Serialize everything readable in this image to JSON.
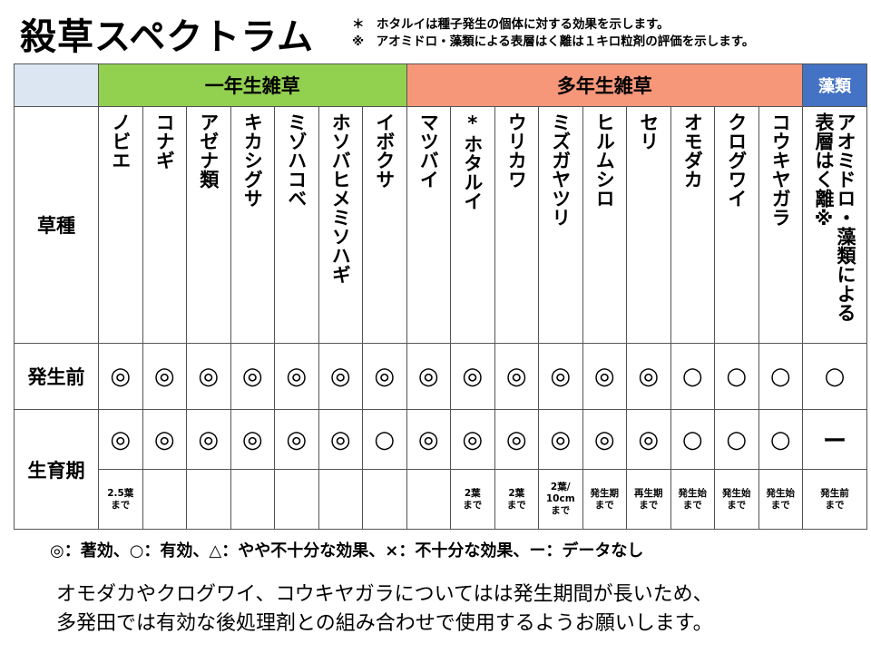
{
  "title": "殺草スペクトラム",
  "notes": [
    "＊　ホタルイは種子発生の個体に対する効果を示します。",
    "※　アオミドロ・藻類による表層はく離は１キロ粒剤の評価を示します。"
  ],
  "table": {
    "groups": [
      {
        "label": "一年生雑草",
        "color": "#92d050",
        "columns": [
          "ノビエ",
          "コナギ",
          "アゼナ類",
          "キカシグサ",
          "ミゾハコベ",
          "ホソバヒメミソハギ",
          "イボクサ"
        ]
      },
      {
        "label": "多年生雑草",
        "color": "#f7977a",
        "columns": [
          "マツバイ",
          "*ホタルイ",
          "ウリカワ",
          "ミズガヤツリ",
          "ヒルムシロ",
          "セリ",
          "オモダカ",
          "クログワイ",
          "コウキヤガラ"
        ]
      },
      {
        "label": "藻類",
        "color": "#4472c4",
        "columns": [
          [
            "アオミドロ・藻類による",
            "表層はく離※"
          ]
        ]
      }
    ],
    "name_row_label": "草種",
    "rows": [
      {
        "label": "発生前",
        "values": [
          "◎",
          "◎",
          "◎",
          "◎",
          "◎",
          "◎",
          "◎",
          "◎",
          "◎",
          "◎",
          "◎",
          "◎",
          "◎",
          "○",
          "○",
          "○",
          "○"
        ]
      },
      {
        "label": "生育期",
        "values": [
          "◎",
          "◎",
          "◎",
          "◎",
          "◎",
          "◎",
          "○",
          "◎",
          "◎",
          "◎",
          "◎",
          "◎",
          "◎",
          "○",
          "○",
          "○",
          "ー"
        ],
        "notes": [
          [
            "2.5葉",
            "まで"
          ],
          null,
          null,
          null,
          null,
          null,
          null,
          null,
          [
            "2葉",
            "まで"
          ],
          [
            "2葉",
            "まで"
          ],
          [
            "2葉/",
            "10cm",
            "まで"
          ],
          [
            "発生期",
            "まで"
          ],
          [
            "再生期",
            "まで"
          ],
          [
            "発生始",
            "まで"
          ],
          [
            "発生始",
            "まで"
          ],
          [
            "発生始",
            "まで"
          ],
          [
            "発生前",
            "まで"
          ]
        ]
      }
    ]
  },
  "legend": "◎：著効、○：有効、△：やや不十分な効果、×：不十分な効果、ー：データなし",
  "footer": [
    "オモダカやクログワイ、コウキヤガラについてはは発生期間が長いため、",
    "多発田では有効な後処理剤との組み合わせで使用するようお願いします。"
  ]
}
